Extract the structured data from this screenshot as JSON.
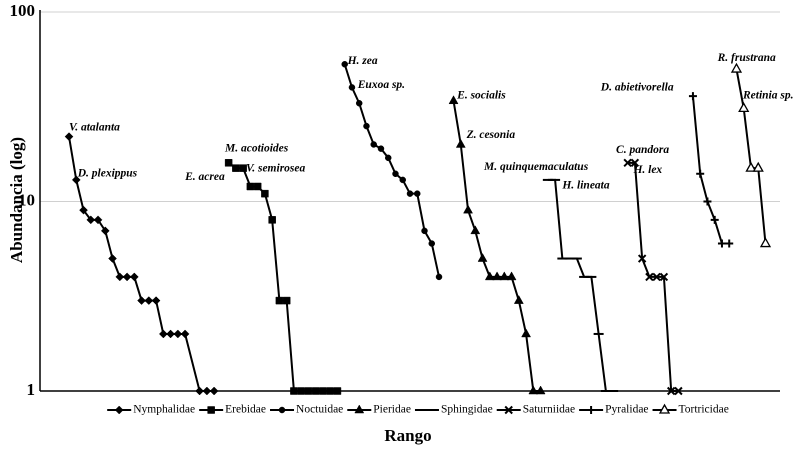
{
  "chart_data": {
    "type": "line",
    "y_label": "Abundancia (log)",
    "x_label": "Rango",
    "ylim": [
      1,
      100
    ],
    "yticks": [
      1,
      10,
      100
    ],
    "log_y": true,
    "grid": true,
    "xlim": [
      -4,
      98
    ],
    "series": [
      {
        "name": "Nymphalidae",
        "color": "#000000",
        "marker": "diamond",
        "x": [
          0,
          1,
          2,
          3,
          4,
          5,
          6,
          7,
          8,
          9,
          10,
          11,
          12,
          13,
          14,
          15,
          16,
          18,
          19,
          20
        ],
        "values": [
          22,
          13,
          9,
          8,
          8,
          7,
          5,
          4,
          4,
          4,
          3,
          3,
          3,
          2,
          2,
          2,
          2,
          1,
          1,
          1
        ]
      },
      {
        "name": "Erebidae",
        "color": "#000000",
        "marker": "square",
        "x": [
          22,
          23,
          24,
          25,
          26,
          27,
          28,
          29,
          30,
          31,
          32,
          33,
          34,
          35,
          36,
          37
        ],
        "values": [
          16,
          15,
          15,
          12,
          12,
          11,
          8,
          3,
          3,
          1,
          1,
          1,
          1,
          1,
          1,
          1
        ]
      },
      {
        "name": "Noctuidae",
        "color": "#000000",
        "marker": "dot",
        "x": [
          38,
          39,
          40,
          41,
          42,
          43,
          44,
          45,
          46,
          47,
          48,
          49,
          50,
          51
        ],
        "values": [
          53,
          40,
          33,
          25,
          20,
          19,
          17,
          14,
          13,
          11,
          11,
          7,
          6,
          4
        ]
      },
      {
        "name": "Pieridae",
        "color": "#000000",
        "marker": "triangle",
        "x": [
          53,
          54,
          55,
          56,
          57,
          58,
          59,
          60,
          61,
          62,
          63,
          64,
          65
        ],
        "values": [
          34,
          20,
          9,
          7,
          5,
          4,
          4,
          4,
          4,
          3,
          2,
          1,
          1
        ]
      },
      {
        "name": "Sphingidae",
        "color": "#000000",
        "marker": "dash",
        "x": [
          66,
          67,
          68,
          69,
          70,
          71,
          72,
          73,
          74,
          75
        ],
        "values": [
          13,
          13,
          5,
          5,
          5,
          4,
          4,
          2,
          1,
          1
        ]
      },
      {
        "name": "Saturniidae",
        "color": "#000000",
        "marker": "cross",
        "x": [
          77,
          78,
          79,
          80,
          81,
          82,
          83,
          84
        ],
        "values": [
          16,
          16,
          5,
          4,
          4,
          4,
          1,
          1
        ]
      },
      {
        "name": "Pyralidae",
        "color": "#000000",
        "marker": "plus",
        "x": [
          86,
          87,
          88,
          89,
          90,
          91
        ],
        "values": [
          36,
          14,
          10,
          8,
          6,
          6
        ]
      },
      {
        "name": "Tortricidae",
        "color": "#000000",
        "marker": "open-triangle",
        "x": [
          92,
          93,
          94,
          95,
          96
        ],
        "values": [
          50,
          31,
          15,
          15,
          6
        ]
      }
    ],
    "annotations": [
      {
        "text": "V. atalanta",
        "x": 0,
        "y": 24.5
      },
      {
        "text": "D. plexippus",
        "x": 1.2,
        "y": 14
      },
      {
        "text": "M. acotioides",
        "x": 21.5,
        "y": 19
      },
      {
        "text": "V. semirosea",
        "x": 24.4,
        "y": 14.9
      },
      {
        "text": "E. acrea",
        "x": 16,
        "y": 13.4
      },
      {
        "text": "H. zea",
        "x": 38.4,
        "y": 55
      },
      {
        "text": "Euxoa sp.",
        "x": 39.8,
        "y": 41
      },
      {
        "text": "E. socialis",
        "x": 53.5,
        "y": 36
      },
      {
        "text": "Z. cesonia",
        "x": 54.8,
        "y": 22.3
      },
      {
        "text": "M. quinquemaculatus",
        "x": 57.2,
        "y": 15.1
      },
      {
        "text": "H. lineata",
        "x": 68,
        "y": 12.1
      },
      {
        "text": "C. pandora",
        "x": 75.4,
        "y": 18.6
      },
      {
        "text": "H. lex",
        "x": 77.8,
        "y": 14.6
      },
      {
        "text": "D. abietivorella",
        "x": 73.3,
        "y": 39.8
      },
      {
        "text": "R. frustrana",
        "x": 89.4,
        "y": 57
      },
      {
        "text": "Retinia sp.",
        "x": 92.9,
        "y": 36
      }
    ]
  }
}
